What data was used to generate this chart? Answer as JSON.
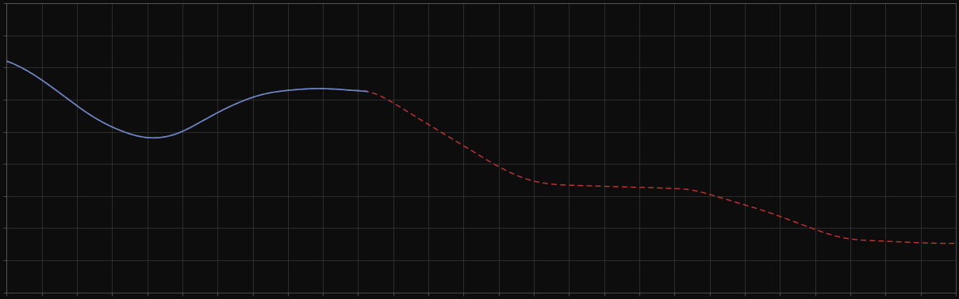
{
  "background_color": "#0d0d0d",
  "plot_bg_color": "#0d0d0d",
  "grid_color": "#3a3a3a",
  "blue_color": "#6688cc",
  "red_color": "#cc3333",
  "axis_color": "#666666",
  "tick_color": "#666666",
  "xlim": [
    0,
    100
  ],
  "ylim": [
    0,
    10
  ],
  "figsize": [
    12.09,
    3.78
  ],
  "dpi": 100,
  "x_major": 3.7037,
  "y_major": 1.0,
  "blue_end_x": 38,
  "blue_x": [
    0,
    3,
    6,
    9,
    12,
    15,
    18,
    21,
    24,
    27,
    30,
    33,
    36,
    38
  ],
  "blue_y": [
    8.0,
    7.5,
    6.8,
    6.1,
    5.6,
    5.35,
    5.5,
    6.0,
    6.5,
    6.85,
    7.0,
    7.05,
    7.0,
    6.95
  ],
  "red_x": [
    0,
    3,
    6,
    9,
    12,
    15,
    18,
    21,
    24,
    27,
    30,
    33,
    36,
    38,
    42,
    46,
    50,
    55,
    60,
    65,
    70,
    72,
    75,
    80,
    85,
    88,
    92,
    96,
    100
  ],
  "red_y": [
    8.0,
    7.5,
    6.8,
    6.1,
    5.6,
    5.35,
    5.5,
    6.0,
    6.5,
    6.85,
    7.0,
    7.05,
    7.0,
    6.95,
    6.3,
    5.5,
    4.7,
    3.9,
    3.7,
    3.65,
    3.6,
    3.55,
    3.3,
    2.8,
    2.2,
    1.9,
    1.78,
    1.72,
    1.7
  ]
}
